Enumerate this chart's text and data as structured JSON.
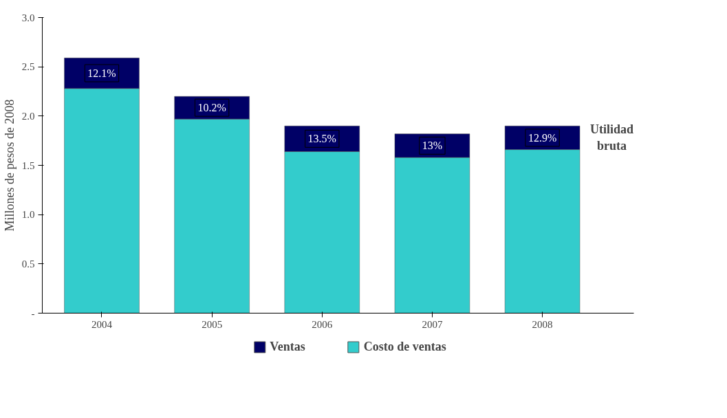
{
  "chart_data": {
    "type": "bar",
    "stacked": true,
    "ylabel": "Millones de pesos de 2008",
    "categories": [
      "2004",
      "2005",
      "2006",
      "2007",
      "2008"
    ],
    "series": [
      {
        "name": "Costo de ventas",
        "color": "#33cccc",
        "values": [
          2.28,
          1.97,
          1.64,
          1.58,
          1.66
        ]
      },
      {
        "name": "Ventas",
        "color": "#000066",
        "values": [
          0.31,
          0.23,
          0.26,
          0.24,
          0.24
        ]
      }
    ],
    "ylim": [
      0,
      3.0
    ],
    "yticks": [
      {
        "value": 0,
        "label": "-"
      },
      0.5,
      {
        "value": 1,
        "label": "1.0"
      },
      1.5,
      {
        "value": 2,
        "label": "2.0"
      },
      2.5,
      {
        "value": 3,
        "label": "3.0"
      }
    ],
    "grid": false,
    "legend": "bottom",
    "annotations": [
      "Utilidad bruta",
      "12.1%",
      "10.2%",
      "13.5%",
      "13%",
      "12.9%"
    ]
  }
}
